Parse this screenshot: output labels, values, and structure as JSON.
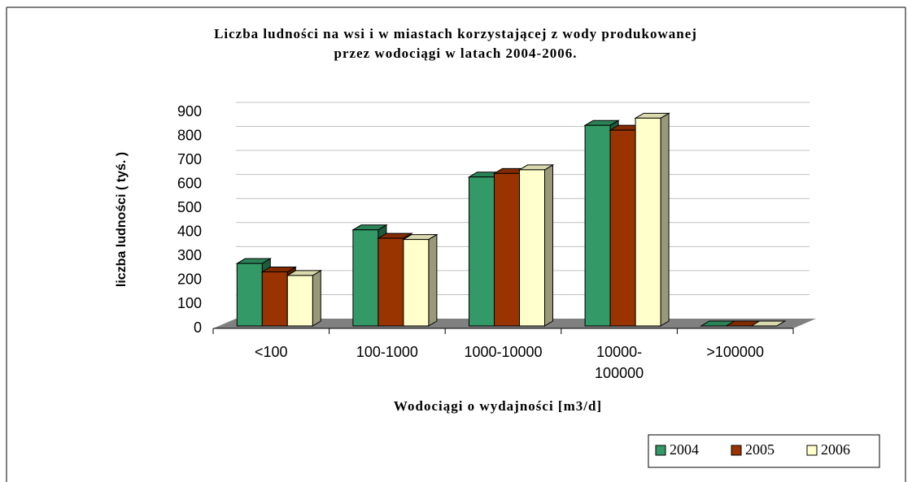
{
  "chart_data": {
    "type": "bar3d",
    "title": "Liczba ludności na wsi i w miastach korzystającej z wody produkowanej\nprzez wodociągi w latach 2004-2006.",
    "x_label": "Wodociągi o wydajności [m3/d]",
    "y_label": "liczba ludności ( tyś. )",
    "categories": [
      "<100",
      "100-1000",
      "1000-10000",
      "10000-\n100000",
      ">100000"
    ],
    "series": [
      {
        "name": "2004",
        "color": "#339966",
        "values": [
          260,
          400,
          620,
          835,
          0
        ]
      },
      {
        "name": "2005",
        "color": "#993300",
        "values": [
          225,
          365,
          635,
          815,
          0
        ]
      },
      {
        "name": "2006",
        "color": "#ffffcc",
        "values": [
          210,
          360,
          650,
          865,
          0
        ]
      }
    ],
    "ylim": [
      0,
      900
    ],
    "yticks": [
      0,
      100,
      200,
      300,
      400,
      500,
      600,
      700,
      800,
      900
    ],
    "grid": true,
    "legend": "bottom-right"
  }
}
